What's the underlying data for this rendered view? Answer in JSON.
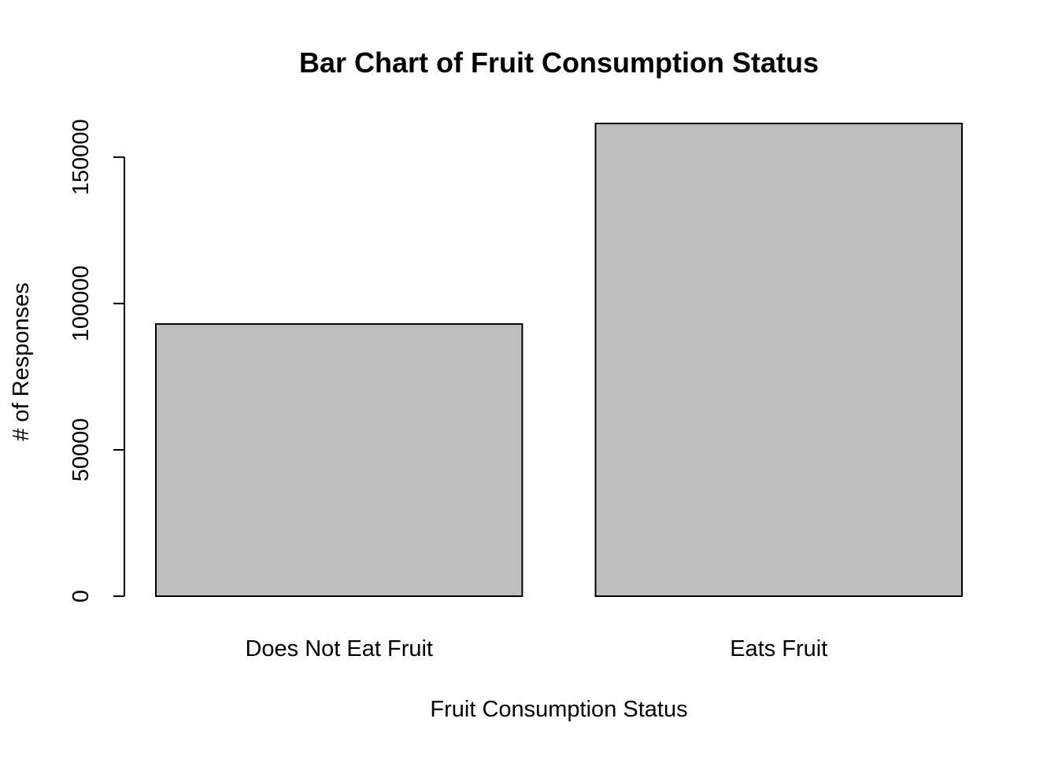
{
  "chart_data": {
    "type": "bar",
    "title": "Bar Chart of Fruit Consumption Status",
    "xlabel": "Fruit Consumption Status",
    "ylabel": "# of Responses",
    "categories": [
      "Does Not Eat Fruit",
      "Eats Fruit"
    ],
    "values": [
      93000,
      161500
    ],
    "ylim": [
      0,
      161500
    ],
    "yticks": [
      0,
      50000,
      100000,
      150000
    ],
    "ytick_labels": [
      "0",
      "50000",
      "100000",
      "150000"
    ],
    "bar_color": "#bebebe",
    "bar_border_color": "#000000",
    "grid": false,
    "legend": "none"
  }
}
